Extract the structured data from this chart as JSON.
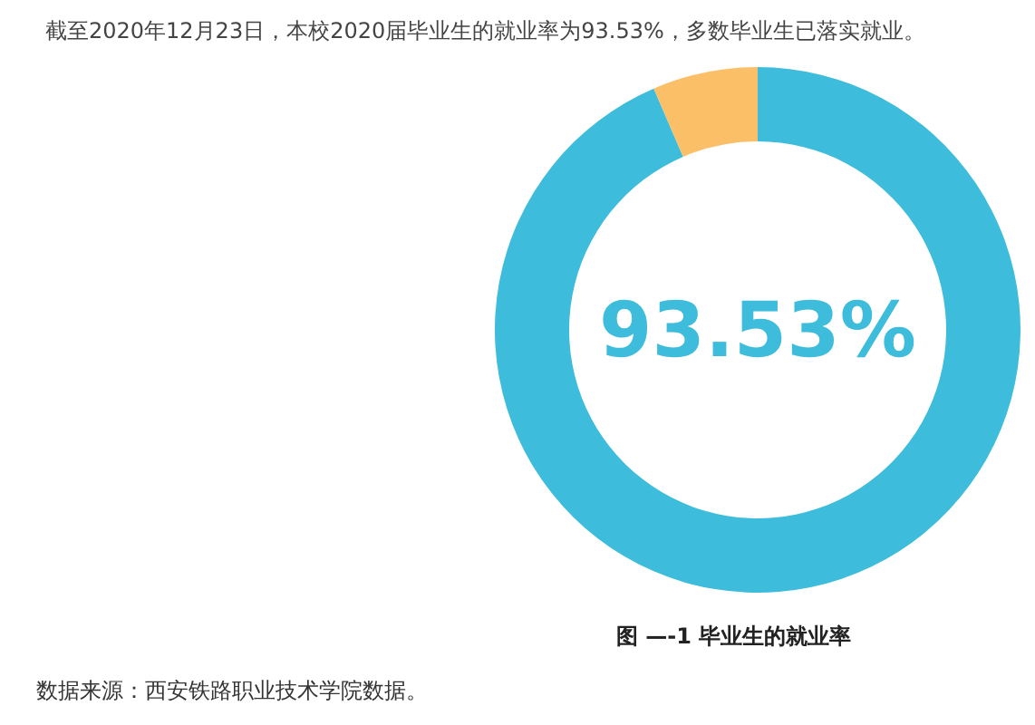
{
  "chart_data": {
    "type": "donut",
    "title": "截至2020年12月23日，本校2020届毕业生的就业率为93.53%，多数毕业生已落实就业。",
    "categories": [
      null,
      null
    ],
    "values": [
      93.53,
      6.47
    ],
    "colors": [
      "#3dbcdc",
      "#fbbf67"
    ],
    "value_labels": [
      "93.53%",
      null
    ],
    "annotations": [
      "图 —-1 毕业生的就业率",
      "数据来源：西安铁路职业技术学院数据。"
    ]
  }
}
